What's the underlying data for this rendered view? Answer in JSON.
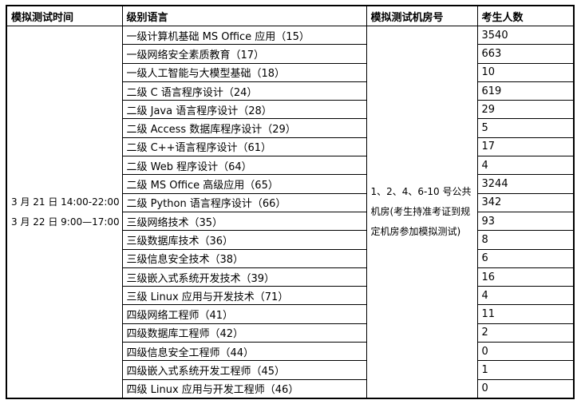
{
  "table": {
    "headers": [
      "模拟测试时间",
      "级别语言",
      "模拟测试机房号",
      "考生人数"
    ],
    "test_times": [
      "3 月 21 日 14:00-22:00",
      "3 月 22 日 9:00—17:00"
    ],
    "room_note": "1、2、4、6-10 号公共机房(考生持准考证到规定机房参加模拟测试)",
    "rows": [
      {
        "course": "一级计算机基础 MS Office 应用（15）",
        "count": 3540
      },
      {
        "course": "一级网络安全素质教育（17）",
        "count": 663
      },
      {
        "course": "一级人工智能与大模型基础（18）",
        "count": 10
      },
      {
        "course": "二级 C 语言程序设计（24）",
        "count": 619
      },
      {
        "course": "二级 Java 语言程序设计（28）",
        "count": 29
      },
      {
        "course": "二级 Access 数据库程序设计（29）",
        "count": 5
      },
      {
        "course": "二级 C++语言程序设计（61）",
        "count": 17
      },
      {
        "course": "二级 Web 程序设计（64）",
        "count": 4
      },
      {
        "course": "二级 MS Office 高级应用（65）",
        "count": 3244
      },
      {
        "course": "二级 Python 语言程序设计（66）",
        "count": 342
      },
      {
        "course": "三级网络技术（35）",
        "count": 93
      },
      {
        "course": "三级数据库技术（36）",
        "count": 8
      },
      {
        "course": "三级信息安全技术（38）",
        "count": 6
      },
      {
        "course": "三级嵌入式系统开发技术（39）",
        "count": 16
      },
      {
        "course": "三级 Linux 应用与开发技术（71）",
        "count": 4
      },
      {
        "course": "四级网络工程师（41）",
        "count": 11
      },
      {
        "course": "四级数据库工程师（42）",
        "count": 2
      },
      {
        "course": "四级信息安全工程师（44）",
        "count": 0
      },
      {
        "course": "四级嵌入式系统开发工程师（45）",
        "count": 1
      },
      {
        "course": "四级 Linux 应用与开发工程师（46）",
        "count": 0
      }
    ]
  }
}
